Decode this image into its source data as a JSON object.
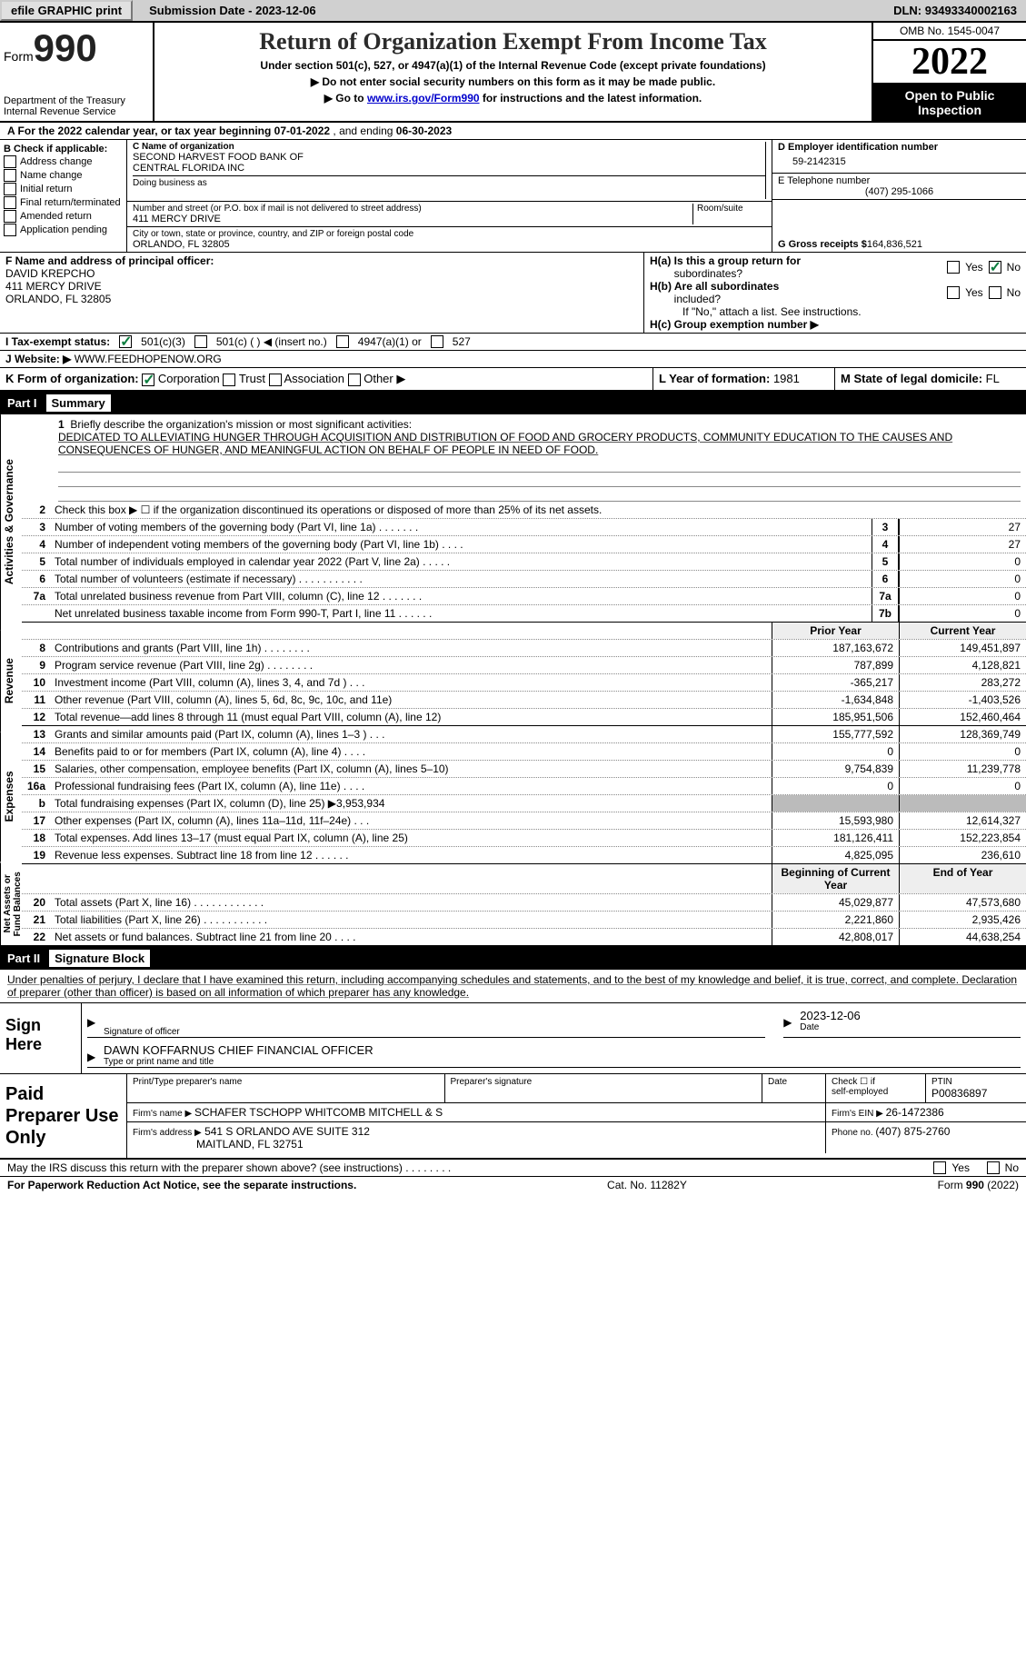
{
  "topbar": {
    "efile_btn": "efile GRAPHIC print",
    "sub_date_label": "Submission Date - ",
    "sub_date": "2023-12-06",
    "dln_label": "DLN: ",
    "dln": "93493340002163"
  },
  "header": {
    "form_word": "Form",
    "form_num": "990",
    "dept1": "Department of the Treasury",
    "dept2": "Internal Revenue Service",
    "title": "Return of Organization Exempt From Income Tax",
    "sub1": "Under section 501(c), 527, or 4947(a)(1) of the Internal Revenue Code (except private foundations)",
    "sub2": "▶ Do not enter social security numbers on this form as it may be made public.",
    "sub3_pre": "▶ Go to ",
    "sub3_link": "www.irs.gov/Form990",
    "sub3_post": " for instructions and the latest information.",
    "omb": "OMB No. 1545-0047",
    "year": "2022",
    "open1": "Open to Public",
    "open2": "Inspection"
  },
  "rowA": {
    "pre": "A  For the 2022 calendar year, or tax year beginning ",
    "begin": "07-01-2022",
    "mid": " , and ending ",
    "end": "06-30-2023"
  },
  "colB": {
    "hdr": "B Check if applicable:",
    "items": [
      "Address change",
      "Name change",
      "Initial return",
      "Final return/terminated",
      "Amended return",
      "Application pending"
    ]
  },
  "colC": {
    "name_lbl": "C Name of organization",
    "name1": "SECOND HARVEST FOOD BANK OF",
    "name2": "CENTRAL FLORIDA INC",
    "dba_lbl": "Doing business as",
    "addr_lbl": "Number and street (or P.O. box if mail is not delivered to street address)",
    "room_lbl": "Room/suite",
    "addr": "411 MERCY DRIVE",
    "city_lbl": "City or town, state or province, country, and ZIP or foreign postal code",
    "city": "ORLANDO, FL  32805"
  },
  "colD": {
    "ein_lbl": "D Employer identification number",
    "ein": "59-2142315",
    "tel_lbl": "E Telephone number",
    "tel": "(407) 295-1066",
    "gross_lbl": "G Gross receipts $ ",
    "gross": "164,836,521"
  },
  "colF": {
    "lbl": "F  Name and address of principal officer:",
    "name": "DAVID KREPCHO",
    "addr1": "411 MERCY DRIVE",
    "addr2": "ORLANDO, FL  32805"
  },
  "colH": {
    "ha1": "H(a)  Is this a group return for",
    "ha2": "subordinates?",
    "hb1": "H(b)  Are all subordinates",
    "hb2": "included?",
    "hb_note": "If \"No,\" attach a list. See instructions.",
    "hc": "H(c)  Group exemption number ▶",
    "yes": "Yes",
    "no": "No"
  },
  "rowI": {
    "lbl": "I    Tax-exempt status:",
    "o1": "501(c)(3)",
    "o2": "501(c) (  ) ◀ (insert no.)",
    "o3": "4947(a)(1) or",
    "o4": "527"
  },
  "rowJ": {
    "lbl": "J    Website: ▶  ",
    "val": "WWW.FEEDHOPENOW.ORG"
  },
  "rowK": {
    "lbl": "K Form of organization:",
    "o1": "Corporation",
    "o2": "Trust",
    "o3": "Association",
    "o4": "Other ▶",
    "L": "L Year of formation: ",
    "Lval": "1981",
    "M": "M State of legal domicile: ",
    "Mval": "FL"
  },
  "part1": {
    "num": "Part I",
    "title": "Summary"
  },
  "mission": {
    "num": "1",
    "lbl": "Briefly describe the organization's mission or most significant activities:",
    "text": "DEDICATED TO ALLEVIATING HUNGER THROUGH ACQUISITION AND DISTRIBUTION OF FOOD AND GROCERY PRODUCTS, COMMUNITY EDUCATION TO THE CAUSES AND CONSEQUENCES OF HUNGER, AND MEANINGFUL ACTION ON BEHALF OF PEOPLE IN NEED OF FOOD."
  },
  "s": {
    "gov": "Activities & Governance",
    "rev": "Revenue",
    "exp": "Expenses",
    "net": "Net Assets or Fund Balances",
    "l2": "Check this box ▶ ☐ if the organization discontinued its operations or disposed of more than 25% of its net assets.",
    "rows_gov": [
      {
        "n": "3",
        "t": "Number of voting members of the governing body (Part VI, line 1a)  .    .    .    .    .    .    .",
        "b": "3",
        "v": "27"
      },
      {
        "n": "4",
        "t": "Number of independent voting members of the governing body (Part VI, line 1b)   .    .    .    .",
        "b": "4",
        "v": "27"
      },
      {
        "n": "5",
        "t": "Total number of individuals employed in calendar year 2022 (Part V, line 2a)   .    .    .    .    .",
        "b": "5",
        "v": "0"
      },
      {
        "n": "6",
        "t": "Total number of volunteers (estimate if necessary)    .    .    .    .    .    .    .    .    .    .    .",
        "b": "6",
        "v": "0"
      },
      {
        "n": "7a",
        "t": "Total unrelated business revenue from Part VIII, column (C), line 12    .    .    .    .    .    .    .",
        "b": "7a",
        "v": "0"
      },
      {
        "n": "",
        "t": "Net unrelated business taxable income from Form 990-T, Part I, line 11   .    .    .    .    .    .",
        "b": "7b",
        "v": "0"
      }
    ],
    "prior": "Prior Year",
    "curr": "Current Year",
    "rows_rev": [
      {
        "n": "8",
        "t": "Contributions and grants (Part VIII, line 1h)   .    .    .    .    .    .    .    .",
        "p": "187,163,672",
        "c": "149,451,897"
      },
      {
        "n": "9",
        "t": "Program service revenue (Part VIII, line 2g)   .    .    .    .    .    .    .    .",
        "p": "787,899",
        "c": "4,128,821"
      },
      {
        "n": "10",
        "t": "Investment income (Part VIII, column (A), lines 3, 4, and 7d )   .    .    .",
        "p": "-365,217",
        "c": "283,272"
      },
      {
        "n": "11",
        "t": "Other revenue (Part VIII, column (A), lines 5, 6d, 8c, 9c, 10c, and 11e)",
        "p": "-1,634,848",
        "c": "-1,403,526"
      },
      {
        "n": "12",
        "t": "Total revenue—add lines 8 through 11 (must equal Part VIII, column (A), line 12)",
        "p": "185,951,506",
        "c": "152,460,464"
      }
    ],
    "rows_exp": [
      {
        "n": "13",
        "t": "Grants and similar amounts paid (Part IX, column (A), lines 1–3 )   .    .    .",
        "p": "155,777,592",
        "c": "128,369,749"
      },
      {
        "n": "14",
        "t": "Benefits paid to or for members (Part IX, column (A), line 4)   .    .    .    .",
        "p": "0",
        "c": "0"
      },
      {
        "n": "15",
        "t": "Salaries, other compensation, employee benefits (Part IX, column (A), lines 5–10)",
        "p": "9,754,839",
        "c": "11,239,778"
      },
      {
        "n": "16a",
        "t": "Professional fundraising fees (Part IX, column (A), line 11e)   .    .    .    .",
        "p": "0",
        "c": "0"
      },
      {
        "n": "b",
        "t": "Total fundraising expenses (Part IX, column (D), line 25) ▶3,953,934",
        "p": "",
        "c": "",
        "shade": true
      },
      {
        "n": "17",
        "t": "Other expenses (Part IX, column (A), lines 11a–11d, 11f–24e)   .    .    .",
        "p": "15,593,980",
        "c": "12,614,327"
      },
      {
        "n": "18",
        "t": "Total expenses. Add lines 13–17 (must equal Part IX, column (A), line 25)",
        "p": "181,126,411",
        "c": "152,223,854"
      },
      {
        "n": "19",
        "t": "Revenue less expenses. Subtract line 18 from line 12   .    .    .    .    .    .",
        "p": "4,825,095",
        "c": "236,610"
      }
    ],
    "begin": "Beginning of Current Year",
    "end": "End of Year",
    "rows_net": [
      {
        "n": "20",
        "t": "Total assets (Part X, line 16)   .    .    .    .    .    .    .    .    .    .    .    .",
        "p": "45,029,877",
        "c": "47,573,680"
      },
      {
        "n": "21",
        "t": "Total liabilities (Part X, line 26)   .    .    .    .    .    .    .    .    .    .    .",
        "p": "2,221,860",
        "c": "2,935,426"
      },
      {
        "n": "22",
        "t": "Net assets or fund balances. Subtract line 21 from line 20   .    .    .    .",
        "p": "42,808,017",
        "c": "44,638,254"
      }
    ]
  },
  "part2": {
    "num": "Part II",
    "title": "Signature Block"
  },
  "sig": {
    "intro": "Under penalties of perjury, I declare that I have examined this return, including accompanying schedules and statements, and to the best of my knowledge and belief, it is true, correct, and complete. Declaration of preparer (other than officer) is based on all information of which preparer has any knowledge.",
    "sign_here": "Sign Here",
    "sig_lbl": "Signature of officer",
    "date_lbl": "Date",
    "date": "2023-12-06",
    "name": "DAWN KOFFARNUS  CHIEF FINANCIAL OFFICER",
    "name_lbl": "Type or print name and title"
  },
  "prep": {
    "title": "Paid Preparer Use Only",
    "c1": "Print/Type preparer's name",
    "c2": "Preparer's signature",
    "c3": "Date",
    "c4a": "Check ☐ if",
    "c4b": "self-employed",
    "c5a": "PTIN",
    "c5b": "P00836897",
    "firm_lbl": "Firm's name   ▶ ",
    "firm": "SCHAFER TSCHOPP WHITCOMB MITCHELL & S",
    "ein_lbl": "Firm's EIN ▶ ",
    "ein": "26-1472386",
    "addr_lbl": "Firm's address ▶",
    "addr1": "541 S ORLANDO AVE SUITE 312",
    "addr2": "MAITLAND, FL  32751",
    "ph_lbl": "Phone no. ",
    "ph": "(407) 875-2760"
  },
  "footer": {
    "q": "May the IRS discuss this return with the preparer shown above? (see instructions)   .    .    .    .    .    .    .    .",
    "yes": "Yes",
    "no": "No",
    "pra": "For Paperwork Reduction Act Notice, see the separate instructions.",
    "cat": "Cat. No. 11282Y",
    "form": "Form 990 (2022)"
  }
}
